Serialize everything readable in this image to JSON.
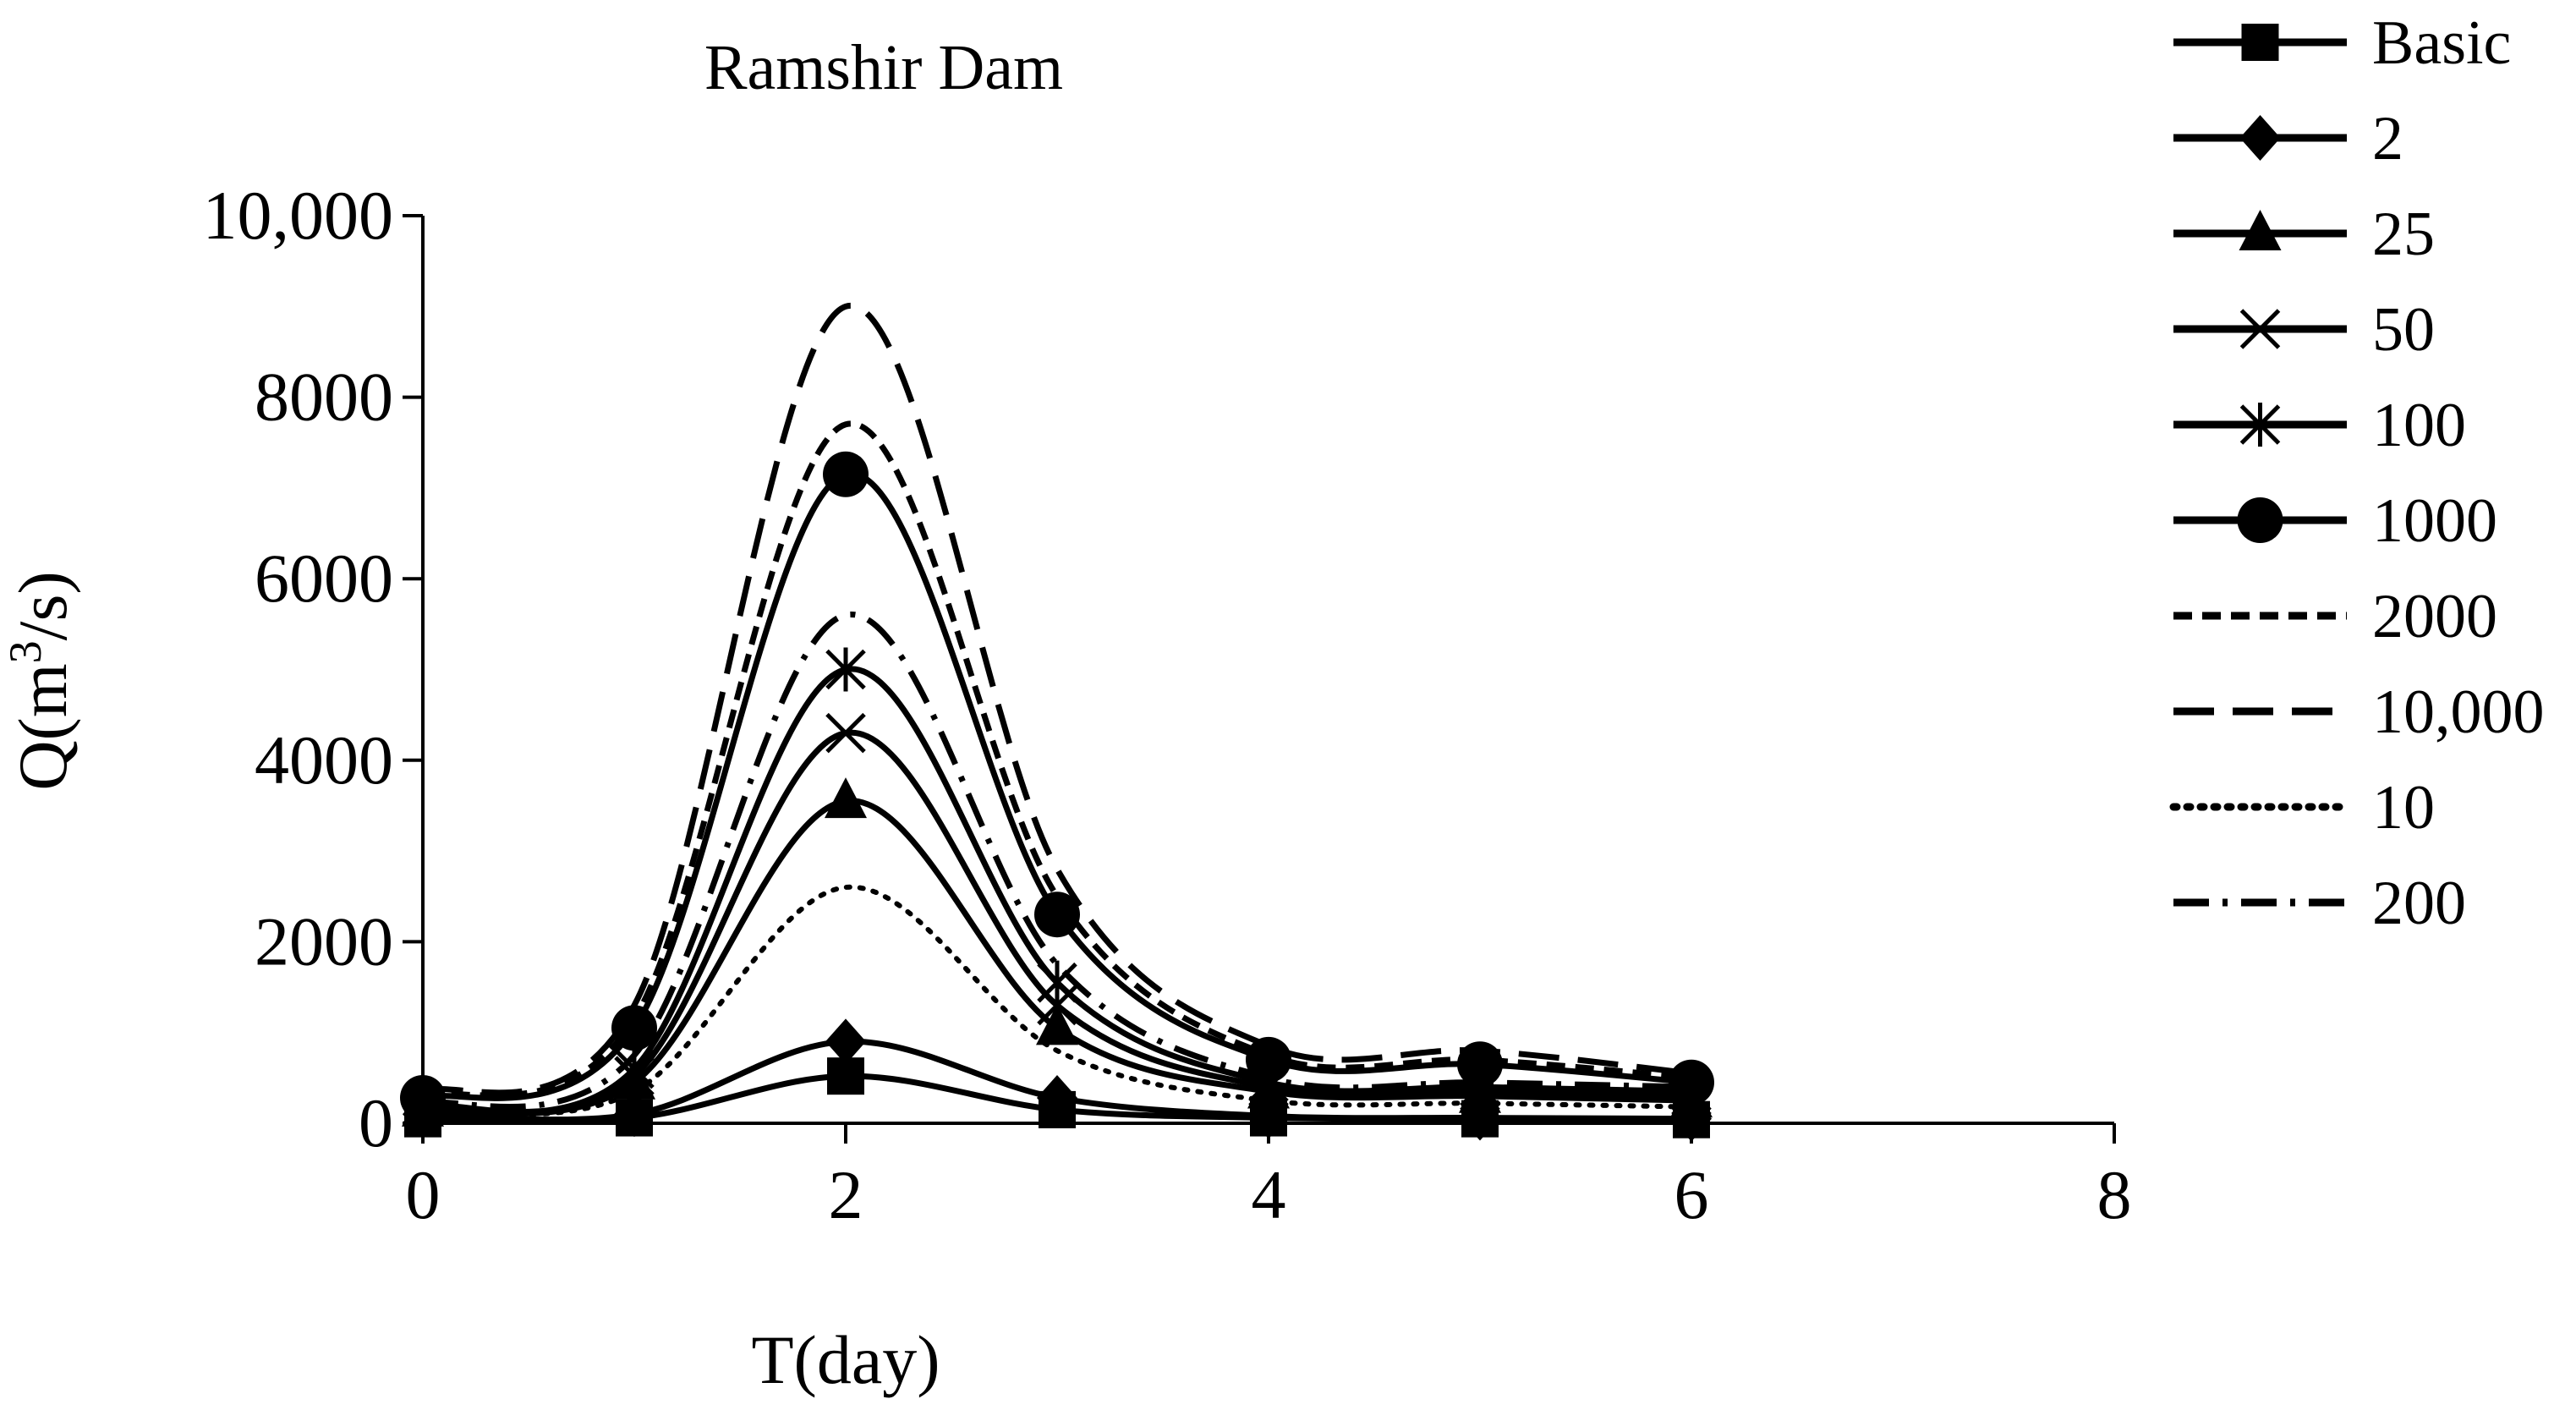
{
  "chart_data": {
    "type": "line",
    "title": "Ramshir Dam",
    "xlabel": "T(day)",
    "ylabel_main": "Q(m",
    "ylabel_sup": "3",
    "ylabel_tail": "/s)",
    "xlim": [
      0,
      8
    ],
    "ylim": [
      0,
      10000
    ],
    "x_ticks": [
      0,
      2,
      4,
      6,
      8
    ],
    "x_tick_labels": [
      "0",
      "2",
      "4",
      "6",
      "8"
    ],
    "y_ticks": [
      0,
      2000,
      4000,
      6000,
      8000,
      10000
    ],
    "y_tick_labels": [
      "0",
      "2000",
      "4000",
      "6000",
      "8000",
      "10,000"
    ],
    "grid": false,
    "legend_position": "right",
    "x": [
      0,
      1,
      2,
      3,
      4,
      5,
      6
    ],
    "series": [
      {
        "name": "Basic",
        "marker": "square",
        "dash": "solid",
        "values": [
          50,
          60,
          520,
          150,
          60,
          50,
          40
        ]
      },
      {
        "name": "2",
        "marker": "diamond",
        "dash": "solid",
        "values": [
          100,
          100,
          900,
          280,
          80,
          60,
          50
        ]
      },
      {
        "name": "25",
        "marker": "triangle",
        "dash": "solid",
        "values": [
          150,
          450,
          3550,
          1050,
          350,
          300,
          250
        ]
      },
      {
        "name": "50",
        "marker": "x",
        "dash": "solid",
        "values": [
          180,
          520,
          4300,
          1300,
          400,
          350,
          300
        ]
      },
      {
        "name": "100",
        "marker": "star",
        "dash": "solid",
        "values": [
          200,
          600,
          5000,
          1550,
          450,
          400,
          350
        ]
      },
      {
        "name": "1000",
        "marker": "circle",
        "dash": "solid",
        "values": [
          280,
          1050,
          7150,
          2300,
          700,
          650,
          450
        ]
      },
      {
        "name": "2000",
        "marker": "none",
        "dash": "shortdash",
        "values": [
          300,
          1150,
          7700,
          2500,
          750,
          700,
          500
        ]
      },
      {
        "name": "10,000",
        "marker": "none",
        "dash": "longdash",
        "values": [
          350,
          1300,
          9000,
          2800,
          850,
          800,
          550
        ]
      },
      {
        "name": "10",
        "marker": "none",
        "dash": "dot",
        "values": [
          120,
          350,
          2600,
          800,
          250,
          220,
          180
        ]
      },
      {
        "name": "200",
        "marker": "none",
        "dash": "dashdot",
        "values": [
          220,
          750,
          5600,
          1750,
          500,
          450,
          400
        ]
      }
    ]
  }
}
